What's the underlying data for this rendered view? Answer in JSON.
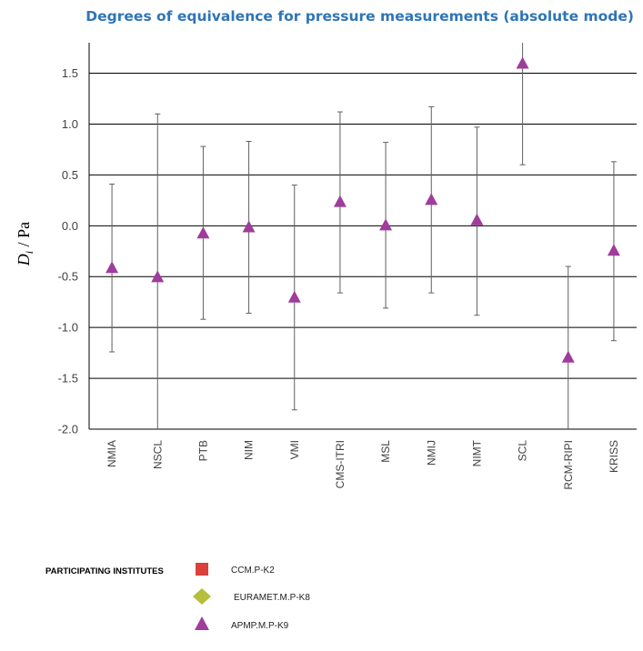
{
  "chart_data": {
    "type": "scatter",
    "title": "Degrees of equivalence for pressure measurements (absolute mode)",
    "ylabel_main": "D",
    "ylabel_sub": "i",
    "ylabel_unit": " / Pa",
    "ylim": [
      -2.0,
      1.8
    ],
    "yticks": [
      -2.0,
      -1.5,
      -1.0,
      -0.5,
      0.0,
      0.5,
      1.0,
      1.5
    ],
    "ytick_labels": [
      "-2.0",
      "-1.5",
      "-1.0",
      "-0.5",
      "0.0",
      "0.5",
      "1.0",
      "1.5"
    ],
    "grid": "horizontal",
    "categories": [
      "NMIA",
      "NSCL",
      "PTB",
      "NIM",
      "VMI",
      "CMS-ITRI",
      "MSL",
      "NMIJ",
      "NIMT",
      "SCL",
      "RCM-RIPI",
      "KRISS"
    ],
    "series": [
      {
        "name": "APMP.M.P-K9",
        "marker": "triangle",
        "color": "#a03c9c",
        "values": [
          -0.42,
          -0.51,
          -0.08,
          -0.02,
          -0.71,
          0.23,
          0.0,
          0.25,
          0.05,
          1.59,
          -1.3,
          -0.25
        ],
        "upper": [
          0.41,
          1.1,
          0.78,
          0.83,
          0.4,
          1.12,
          0.82,
          1.17,
          0.97,
          1.8,
          -0.4,
          0.63
        ],
        "lower": [
          -1.24,
          -2.0,
          -0.92,
          -0.86,
          -1.81,
          -0.66,
          -0.81,
          -0.66,
          -0.88,
          0.6,
          -2.0,
          -1.13
        ]
      }
    ],
    "legend": {
      "heading": "PARTICIPATING INSTITUTES",
      "placement": "bottom-left",
      "items": [
        {
          "label": "CCM.P-K2",
          "marker": "square",
          "color": "#d9413a"
        },
        {
          "label": "EURAMET.M.P-K8",
          "marker": "diamond",
          "color": "#b5bf3c"
        },
        {
          "label": "APMP.M.P-K9",
          "marker": "triangle",
          "color": "#a03c9c"
        }
      ]
    },
    "colors": {
      "title": "#2e75b6",
      "grid": "#000000",
      "errorbar": "#606060"
    }
  }
}
